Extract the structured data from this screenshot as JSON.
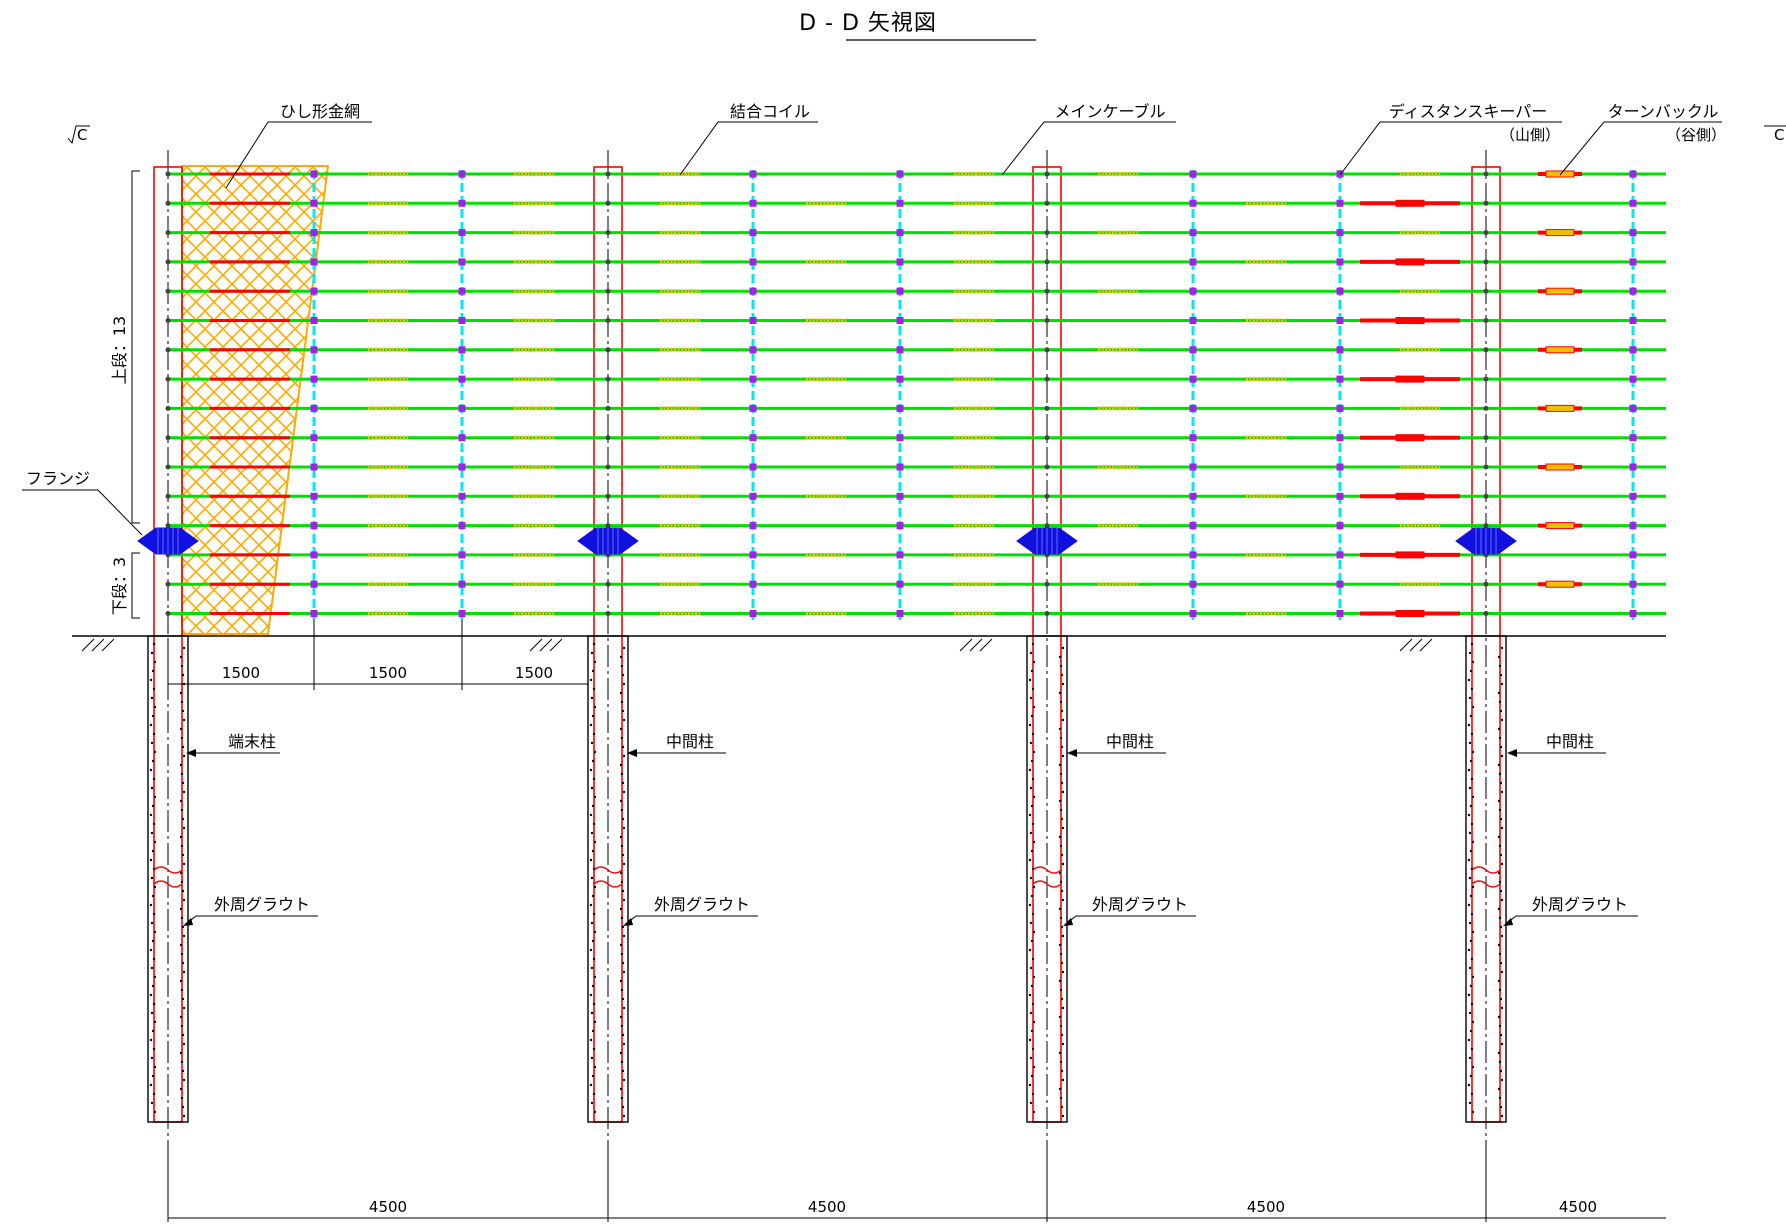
{
  "title": "D - D 矢視図",
  "section_marks": {
    "left": "C",
    "right": "C"
  },
  "labels": {
    "diamond_mesh": "ひし形金網",
    "coupling_coil": "結合コイル",
    "main_cable": "メインケーブル",
    "distance_keeper": "ディスタンスキーパー",
    "distance_keeper_side": "（山側）",
    "turnbuckle": "ターンバックル",
    "turnbuckle_side": "（谷側）",
    "flange": "フランジ",
    "upper_tier": "上段：13",
    "lower_tier": "下段：3",
    "end_post": "端末柱",
    "middle_post_1": "中間柱",
    "middle_post_2": "中間柱",
    "middle_post_3": "中間柱",
    "grout_1": "外周グラウト",
    "grout_2": "外周グラウト",
    "grout_3": "外周グラウト",
    "grout_4": "外周グラウト"
  },
  "dimensions": {
    "keeper_spacing": [
      "1500",
      "1500",
      "1500"
    ],
    "post_spacing": [
      "4500",
      "4500",
      "4500",
      "4500"
    ]
  },
  "colors": {
    "cable": "#00e000",
    "coil": "#f0c000",
    "keeper": "#00e8f0",
    "node": "#a020f0",
    "post": "#ff0000",
    "turnbuckle": "#ff0000",
    "flange": "#1010e0",
    "mesh": "#ffaa00",
    "grout": "#000000"
  }
}
